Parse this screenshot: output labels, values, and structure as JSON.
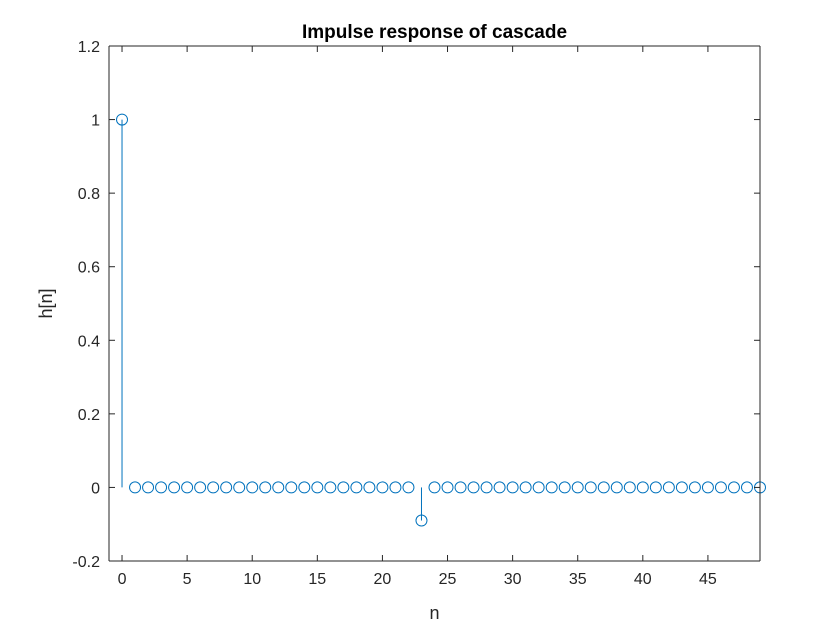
{
  "chart_data": {
    "type": "stem",
    "title": "Impulse response of cascade",
    "xlabel": "n",
    "ylabel": "h[n]",
    "xlim": [
      -1,
      49
    ],
    "ylim": [
      -0.2,
      1.2
    ],
    "xticks": [
      0,
      5,
      10,
      15,
      20,
      25,
      30,
      35,
      40,
      45
    ],
    "xtick_labels": [
      "0",
      "5",
      "10",
      "15",
      "20",
      "25",
      "30",
      "35",
      "40",
      "45"
    ],
    "yticks": [
      -0.2,
      0,
      0.2,
      0.4,
      0.6,
      0.8,
      1,
      1.2
    ],
    "ytick_labels": [
      "-0.2",
      "0",
      "0.2",
      "0.4",
      "0.6",
      "0.8",
      "1",
      "1.2"
    ],
    "grid": false,
    "series": [
      {
        "color": "#0072BD",
        "marker": "circle-open",
        "x": [
          0,
          1,
          2,
          3,
          4,
          5,
          6,
          7,
          8,
          9,
          10,
          11,
          12,
          13,
          14,
          15,
          16,
          17,
          18,
          19,
          20,
          21,
          22,
          23,
          24,
          25,
          26,
          27,
          28,
          29,
          30,
          31,
          32,
          33,
          34,
          35,
          36,
          37,
          38,
          39,
          40,
          41,
          42,
          43,
          44,
          45,
          46,
          47,
          48,
          49
        ],
        "y": [
          1,
          0,
          0,
          0,
          0,
          0,
          0,
          0,
          0,
          0,
          0,
          0,
          0,
          0,
          0,
          0,
          0,
          0,
          0,
          0,
          0,
          0,
          0,
          -0.09,
          0,
          0,
          0,
          0,
          0,
          0,
          0,
          0,
          0,
          0,
          0,
          0,
          0,
          0,
          0,
          0,
          0,
          0,
          0,
          0,
          0,
          0,
          0,
          0,
          0,
          0
        ]
      }
    ]
  }
}
